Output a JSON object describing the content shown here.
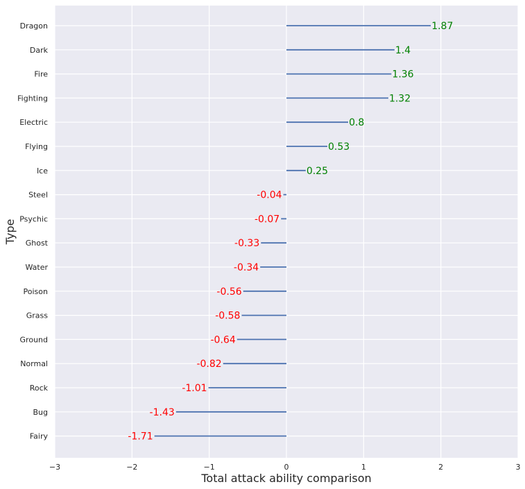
{
  "chart_data": {
    "type": "bar",
    "orientation": "horizontal",
    "xlabel": "Total attack ability comparison",
    "ylabel": "Type",
    "xlim": [
      -3,
      3
    ],
    "xticks": [
      -3,
      -2,
      -1,
      0,
      1,
      2,
      3
    ],
    "xtick_labels": [
      "−3",
      "−2",
      "−1",
      "0",
      "1",
      "2",
      "3"
    ],
    "grid": true,
    "categories": [
      "Dragon",
      "Dark",
      "Fire",
      "Fighting",
      "Electric",
      "Flying",
      "Ice",
      "Steel",
      "Psychic",
      "Ghost",
      "Water",
      "Poison",
      "Grass",
      "Ground",
      "Normal",
      "Rock",
      "Bug",
      "Fairy"
    ],
    "values": [
      1.87,
      1.4,
      1.36,
      1.32,
      0.8,
      0.53,
      0.25,
      -0.04,
      -0.07,
      -0.33,
      -0.34,
      -0.56,
      -0.58,
      -0.64,
      -0.82,
      -1.01,
      -1.43,
      -1.71
    ],
    "value_labels": [
      "1.87",
      "1.4",
      "1.36",
      "1.32",
      "0.8",
      "0.53",
      "0.25",
      "-0.04",
      "-0.07",
      "-0.33",
      "-0.34",
      "-0.56",
      "-0.58",
      "-0.64",
      "-0.82",
      "-1.01",
      "-1.43",
      "-1.71"
    ],
    "colors": {
      "background": "#eaeaf2",
      "grid": "#ffffff",
      "line": "#4c72b0",
      "positive_label": "#008000",
      "negative_label": "#ff0000",
      "text": "#262626"
    }
  }
}
